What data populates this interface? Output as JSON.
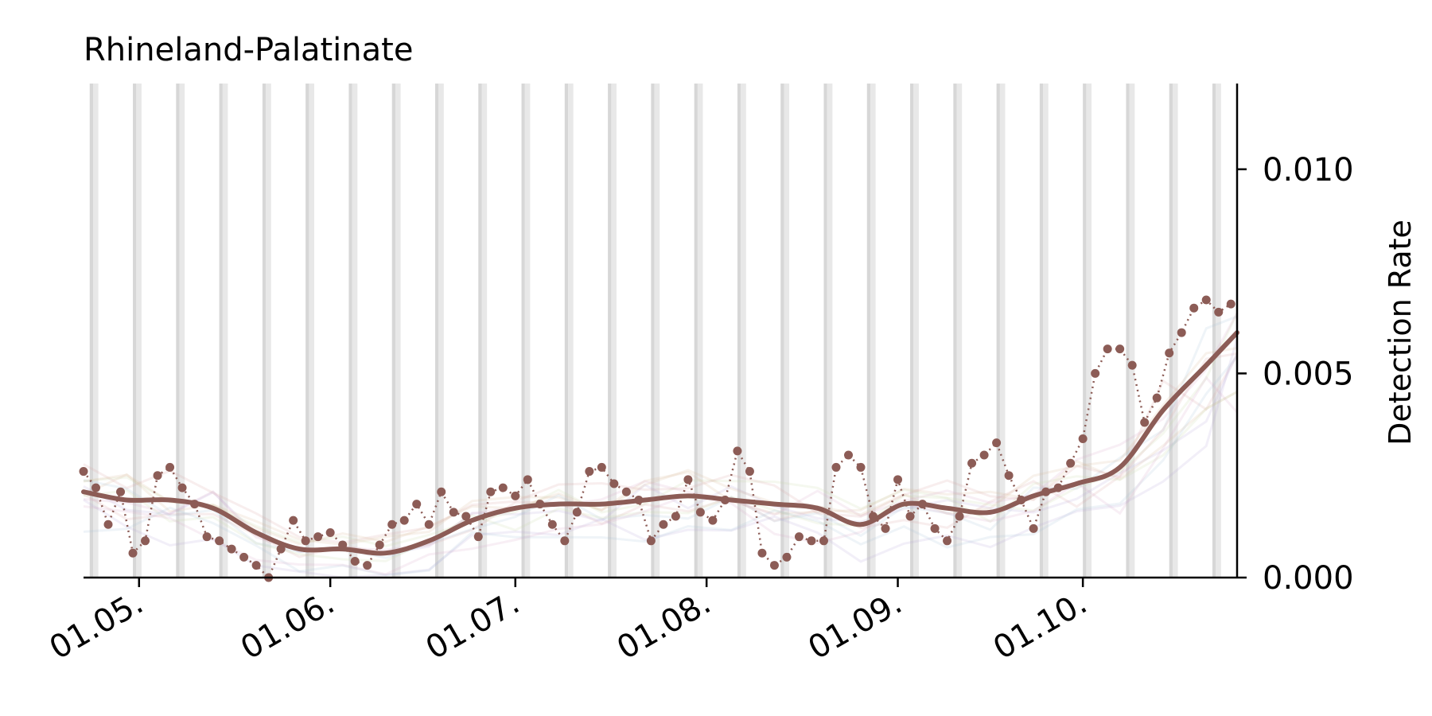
{
  "chart_data": {
    "type": "line",
    "title": "Rhineland-Palatinate",
    "ylabel": "Detection Rate",
    "xlabel": "",
    "x_range": [
      "2022-04-22",
      "2022-10-26"
    ],
    "ylim": [
      0,
      0.0121
    ],
    "y_ticks": [
      {
        "value": 0.0,
        "label": "0.000"
      },
      {
        "value": 0.005,
        "label": "0.005"
      },
      {
        "value": 0.01,
        "label": "0.010"
      }
    ],
    "x_ticks": [
      {
        "date": "2022-05-01",
        "label": "01.05."
      },
      {
        "date": "2022-06-01",
        "label": "01.06."
      },
      {
        "date": "2022-07-01",
        "label": "01.07."
      },
      {
        "date": "2022-08-01",
        "label": "01.08."
      },
      {
        "date": "2022-09-01",
        "label": "01.09."
      },
      {
        "date": "2022-10-01",
        "label": "01.10."
      }
    ],
    "weekend_band_start": "2022-04-23",
    "weekend_band_interval_days": 7,
    "grid": false,
    "legend": "none",
    "series": [
      {
        "role": "smoothed",
        "color": "#8c5c56",
        "x": [
          "2022-04-22",
          "2022-04-29",
          "2022-05-06",
          "2022-05-13",
          "2022-05-20",
          "2022-05-27",
          "2022-06-03",
          "2022-06-10",
          "2022-06-17",
          "2022-06-24",
          "2022-07-01",
          "2022-07-08",
          "2022-07-15",
          "2022-07-22",
          "2022-07-29",
          "2022-08-05",
          "2022-08-12",
          "2022-08-19",
          "2022-08-26",
          "2022-09-02",
          "2022-09-09",
          "2022-09-16",
          "2022-09-23",
          "2022-09-30",
          "2022-10-07",
          "2022-10-14",
          "2022-10-21",
          "2022-10-26"
        ],
        "y": [
          0.0021,
          0.0019,
          0.0019,
          0.0017,
          0.0011,
          0.0007,
          0.0007,
          0.0006,
          0.0009,
          0.0014,
          0.0017,
          0.0018,
          0.0018,
          0.0019,
          0.002,
          0.0019,
          0.0018,
          0.0017,
          0.0013,
          0.0018,
          0.0017,
          0.0016,
          0.002,
          0.0023,
          0.0027,
          0.0041,
          0.0052,
          0.006
        ]
      },
      {
        "role": "daily",
        "color": "#8c5c56",
        "x": [
          "2022-04-22",
          "2022-04-24",
          "2022-04-26",
          "2022-04-28",
          "2022-04-30",
          "2022-05-02",
          "2022-05-04",
          "2022-05-06",
          "2022-05-08",
          "2022-05-10",
          "2022-05-12",
          "2022-05-14",
          "2022-05-16",
          "2022-05-18",
          "2022-05-20",
          "2022-05-22",
          "2022-05-24",
          "2022-05-26",
          "2022-05-28",
          "2022-05-30",
          "2022-06-01",
          "2022-06-03",
          "2022-06-05",
          "2022-06-07",
          "2022-06-09",
          "2022-06-11",
          "2022-06-13",
          "2022-06-15",
          "2022-06-17",
          "2022-06-19",
          "2022-06-21",
          "2022-06-23",
          "2022-06-25",
          "2022-06-27",
          "2022-06-29",
          "2022-07-01",
          "2022-07-03",
          "2022-07-05",
          "2022-07-07",
          "2022-07-09",
          "2022-07-11",
          "2022-07-13",
          "2022-07-15",
          "2022-07-17",
          "2022-07-19",
          "2022-07-21",
          "2022-07-23",
          "2022-07-25",
          "2022-07-27",
          "2022-07-29",
          "2022-07-31",
          "2022-08-02",
          "2022-08-04",
          "2022-08-06",
          "2022-08-08",
          "2022-08-10",
          "2022-08-12",
          "2022-08-14",
          "2022-08-16",
          "2022-08-18",
          "2022-08-20",
          "2022-08-22",
          "2022-08-24",
          "2022-08-26",
          "2022-08-28",
          "2022-08-30",
          "2022-09-01",
          "2022-09-03",
          "2022-09-05",
          "2022-09-07",
          "2022-09-09",
          "2022-09-11",
          "2022-09-13",
          "2022-09-15",
          "2022-09-17",
          "2022-09-19",
          "2022-09-21",
          "2022-09-23",
          "2022-09-25",
          "2022-09-27",
          "2022-09-29",
          "2022-10-01",
          "2022-10-03",
          "2022-10-05",
          "2022-10-07",
          "2022-10-09",
          "2022-10-11",
          "2022-10-13",
          "2022-10-15",
          "2022-10-17",
          "2022-10-19",
          "2022-10-21",
          "2022-10-23",
          "2022-10-25"
        ],
        "y": [
          0.0026,
          0.0022,
          0.0013,
          0.0021,
          0.0006,
          0.0009,
          0.0025,
          0.0027,
          0.0022,
          0.0018,
          0.001,
          0.0009,
          0.0007,
          0.0005,
          0.0003,
          0.0,
          0.0007,
          0.0014,
          0.0009,
          0.001,
          0.0011,
          0.0008,
          0.0004,
          0.0003,
          0.0008,
          0.0013,
          0.0014,
          0.0018,
          0.0013,
          0.0021,
          0.0016,
          0.0015,
          0.001,
          0.0021,
          0.0022,
          0.002,
          0.0024,
          0.0018,
          0.0013,
          0.0009,
          0.0016,
          0.0026,
          0.0027,
          0.0023,
          0.0021,
          0.0019,
          0.0009,
          0.0013,
          0.0015,
          0.0024,
          0.0016,
          0.0014,
          0.0019,
          0.0031,
          0.0026,
          0.0006,
          0.0003,
          0.0005,
          0.001,
          0.0009,
          0.0009,
          0.0027,
          0.003,
          0.0027,
          0.0015,
          0.0012,
          0.0024,
          0.0015,
          0.0018,
          0.0012,
          0.0009,
          0.0015,
          0.0028,
          0.003,
          0.0033,
          0.0025,
          0.0019,
          0.0012,
          0.0021,
          0.0022,
          0.0028,
          0.0034,
          0.005,
          0.0056,
          0.0056,
          0.0052,
          0.0038,
          0.0044,
          0.0055,
          0.006,
          0.0066,
          0.0068,
          0.0065,
          0.0067
        ]
      }
    ]
  }
}
